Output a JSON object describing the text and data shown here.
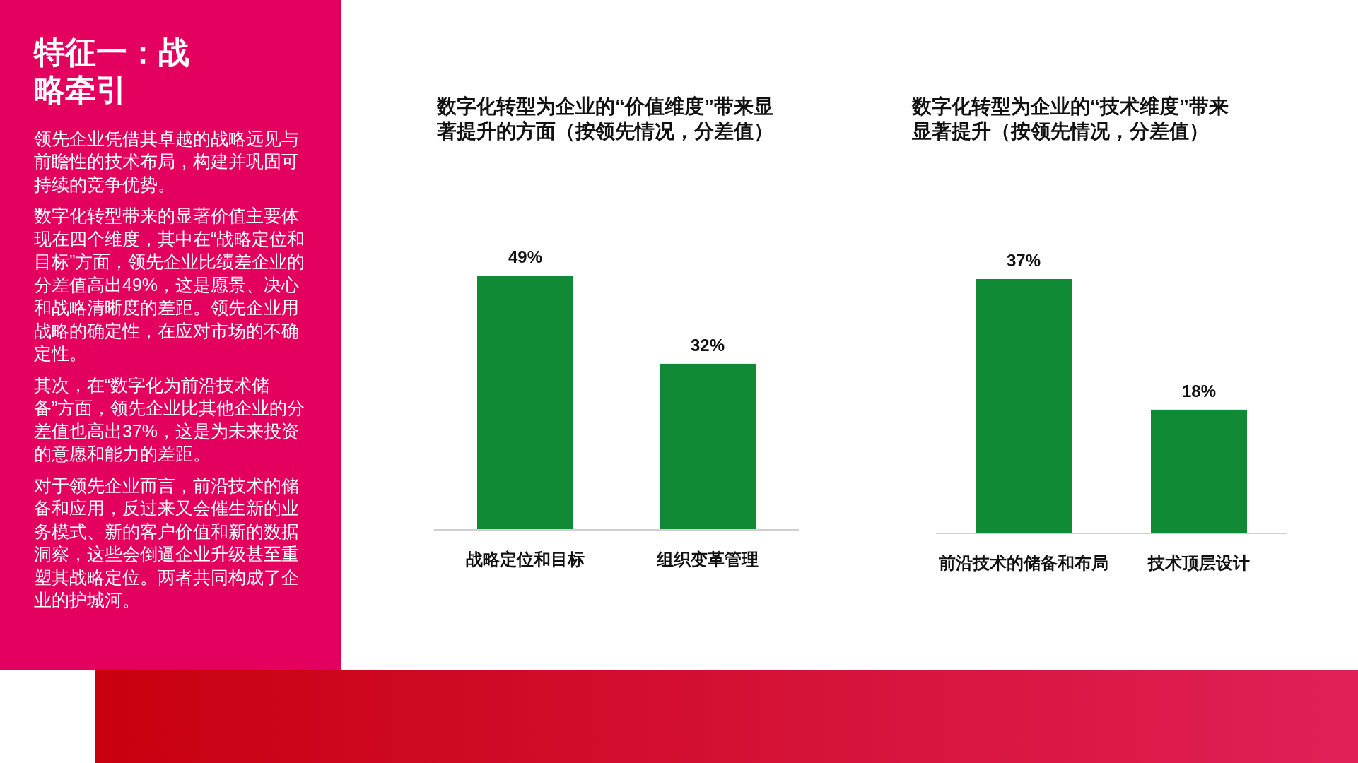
{
  "chart_data": [
    {
      "type": "other",
      "title": "特征一：战略牵引",
      "annotations": [
        "领先企业凭借其卓越的战略远见与前瞻性的技术布局，构建并巩固可持续的竞争优势。",
        "数字化转型带来的显著价值主要体现在四个维度，其中在“战略定位和目标”方面，领先企业比绩差企业的分差值高出49%，这是愿景、决心和战略清晰度的差距。领先企业用战略的确定性，在应对市场的不确定性。",
        "其次，在“数字化为前沿技术储备”方面，领先企业比其他企业的分差值也高出37%，这是为未来投资的意愿和能力的差距。",
        "对于领先企业而言，前沿技术的储备和应用，反过来又会催生新的业务模式、新的客户价值和新的数据洞察，这些会倒逼企业升级甚至重塑其战略定位。两者共同构成了企业的护城河。"
      ]
    },
    {
      "type": "bar",
      "title": "数字化转型为企业的“价值维度”带来显著提升的方面（按领先情况，分差值）",
      "categories": [
        "战略定位和目标",
        "组织变革管理"
      ],
      "values": [
        49,
        32
      ],
      "value_labels": [
        "49%",
        "32%"
      ],
      "color": "#118a35"
    },
    {
      "type": "bar",
      "title": "数字化转型为企业的“技术维度”带来显著提升（按领先情况，分差值）",
      "categories": [
        "前沿技术的储备和布局",
        "技术顶层设计"
      ],
      "values": [
        37,
        18
      ],
      "value_labels": [
        "37%",
        "18%"
      ],
      "color": "#118a35"
    }
  ]
}
